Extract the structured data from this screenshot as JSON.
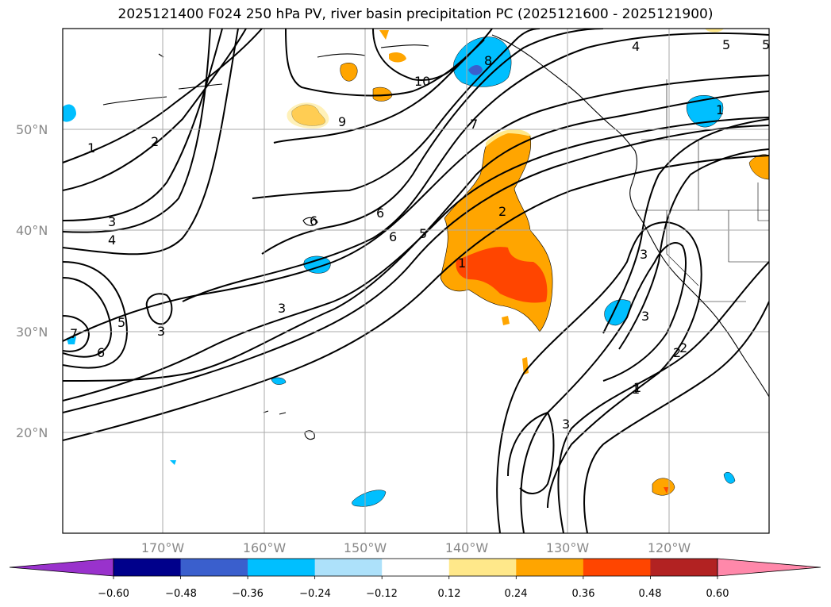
{
  "title": "2025121400 F024 250 hPa PV, river basin precipitation PC (2025121600 - 2025121900)",
  "latitude_labels": [
    "50°N",
    "40°N",
    "30°N",
    "20°N"
  ],
  "longitude_labels": [
    "170°W",
    "160°W",
    "150°W",
    "140°W",
    "130°W",
    "120°W"
  ],
  "contour_labels": [
    "1",
    "2",
    "3",
    "4",
    "1",
    "2",
    "3",
    "5",
    "6",
    "3",
    "7",
    "6",
    "5",
    "9",
    "10",
    "8",
    "7",
    "6",
    "5",
    "2",
    "1",
    "4",
    "5",
    "1",
    "3",
    "2",
    "1",
    "3",
    "3",
    "6"
  ],
  "colorbar": {
    "tick_labels": [
      "−0.60",
      "−0.48",
      "−0.36",
      "−0.24",
      "−0.12",
      "0.12",
      "0.24",
      "0.36",
      "0.48",
      "0.60"
    ],
    "colors": [
      "#9932CC",
      "#00008B",
      "#3A5FCD",
      "#00BFFF",
      "#ADE1FA",
      "#FFFFFF",
      "#FFE88A",
      "#FFA500",
      "#FF4500",
      "#B22222",
      "#FF88AA"
    ]
  },
  "color_roles": {
    "gridline": "#aaaaaa",
    "coastline": "#000000",
    "label_grey": "#888888"
  }
}
